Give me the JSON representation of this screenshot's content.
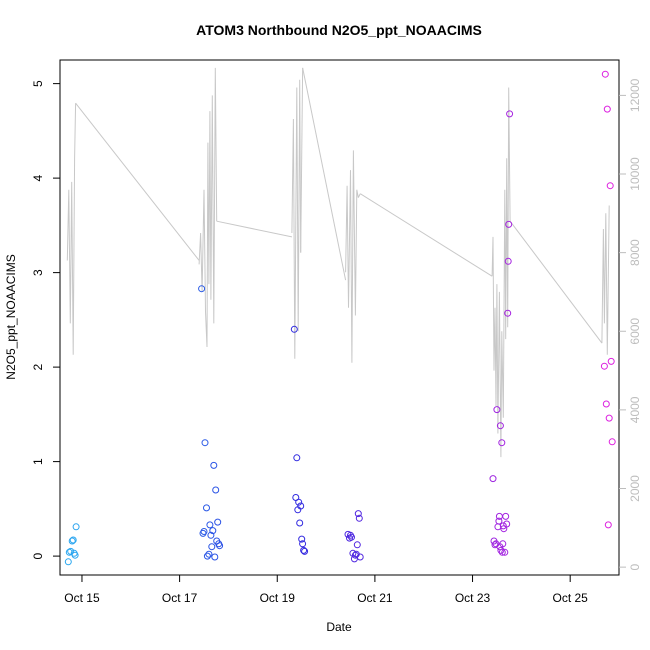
{
  "chart_data": {
    "type": "scatter",
    "title": "ATOM3 Northbound N2O5_ppt_NOAACIMS",
    "xlabel": "Date",
    "ylabel": "N2O5_ppt_NOAACIMS",
    "xlim": [
      14.55,
      26.0
    ],
    "ylim": [
      -0.2,
      5.25
    ],
    "x_ticks": [
      15,
      17,
      19,
      21,
      23,
      25
    ],
    "x_tick_labels": [
      "Oct 15",
      "Oct 17",
      "Oct 19",
      "Oct 21",
      "Oct 23",
      "Oct 25"
    ],
    "y_ticks": [
      0,
      1,
      2,
      3,
      4,
      5
    ],
    "y_tick_labels": [
      "0",
      "1",
      "2",
      "3",
      "4",
      "5"
    ],
    "y2lim": [
      -200,
      12900
    ],
    "y2_ticks": [
      0,
      2000,
      4000,
      6000,
      8000,
      10000,
      12000
    ],
    "y2_tick_labels": [
      "0",
      "2000",
      "4000",
      "6000",
      "8000",
      "10000",
      "12000"
    ],
    "grid": false,
    "colors": {
      "points_start": "#29a8f0",
      "points_mid": "#2a2ae0",
      "points_end": "#e020e0",
      "altitude_line": "#c8c8c8",
      "right_axis": "#bdbdbd"
    },
    "series": [
      {
        "values_note": "x = date (day of October), y = N2O5 ppt",
        "points": [
          [
            14.72,
            -0.06
          ],
          [
            14.74,
            0.04
          ],
          [
            14.77,
            0.05
          ],
          [
            14.8,
            0.16
          ],
          [
            14.82,
            0.17
          ],
          [
            14.84,
            0.03
          ],
          [
            14.86,
            0.01
          ],
          [
            14.88,
            0.31
          ],
          [
            17.45,
            2.83
          ],
          [
            17.48,
            0.24
          ],
          [
            17.5,
            0.26
          ],
          [
            17.52,
            1.2
          ],
          [
            17.55,
            0.51
          ],
          [
            17.57,
            0.0
          ],
          [
            17.6,
            0.02
          ],
          [
            17.62,
            0.33
          ],
          [
            17.64,
            0.22
          ],
          [
            17.66,
            0.1
          ],
          [
            17.68,
            0.27
          ],
          [
            17.7,
            0.96
          ],
          [
            17.72,
            -0.01
          ],
          [
            17.74,
            0.7
          ],
          [
            17.76,
            0.16
          ],
          [
            17.78,
            0.36
          ],
          [
            17.8,
            0.13
          ],
          [
            17.82,
            0.11
          ],
          [
            19.35,
            2.4
          ],
          [
            19.38,
            0.62
          ],
          [
            19.4,
            1.04
          ],
          [
            19.42,
            0.49
          ],
          [
            19.44,
            0.57
          ],
          [
            19.46,
            0.35
          ],
          [
            19.48,
            0.53
          ],
          [
            19.5,
            0.18
          ],
          [
            19.52,
            0.13
          ],
          [
            19.54,
            0.06
          ],
          [
            19.56,
            0.05
          ],
          [
            20.45,
            0.23
          ],
          [
            20.48,
            0.19
          ],
          [
            20.5,
            0.22
          ],
          [
            20.52,
            0.2
          ],
          [
            20.55,
            0.03
          ],
          [
            20.58,
            -0.03
          ],
          [
            20.6,
            0.01
          ],
          [
            20.62,
            0.02
          ],
          [
            20.64,
            0.12
          ],
          [
            20.66,
            0.45
          ],
          [
            20.68,
            0.4
          ],
          [
            20.7,
            -0.01
          ],
          [
            23.42,
            0.82
          ],
          [
            23.44,
            0.16
          ],
          [
            23.46,
            0.12
          ],
          [
            23.48,
            0.13
          ],
          [
            23.5,
            1.55
          ],
          [
            23.52,
            0.31
          ],
          [
            23.54,
            0.37
          ],
          [
            23.55,
            0.42
          ],
          [
            23.56,
            0.1
          ],
          [
            23.57,
            1.38
          ],
          [
            23.58,
            0.06
          ],
          [
            23.6,
            1.2
          ],
          [
            23.61,
            0.04
          ],
          [
            23.62,
            0.13
          ],
          [
            23.63,
            0.32
          ],
          [
            23.64,
            0.29
          ],
          [
            23.66,
            0.04
          ],
          [
            23.68,
            0.42
          ],
          [
            23.7,
            0.34
          ],
          [
            23.72,
            2.57
          ],
          [
            23.73,
            3.12
          ],
          [
            23.74,
            3.51
          ],
          [
            23.76,
            4.68
          ],
          [
            25.7,
            2.01
          ],
          [
            25.72,
            5.1
          ],
          [
            25.74,
            1.61
          ],
          [
            25.76,
            4.73
          ],
          [
            25.78,
            0.33
          ],
          [
            25.8,
            1.46
          ],
          [
            25.82,
            3.92
          ],
          [
            25.84,
            2.06
          ],
          [
            25.86,
            1.21
          ]
        ]
      },
      {
        "name_note": "secondary series drawn as gray line on right axis",
        "points": [
          [
            14.7,
            7800
          ],
          [
            14.73,
            9600
          ],
          [
            14.76,
            6200
          ],
          [
            14.79,
            9800
          ],
          [
            14.82,
            5400
          ],
          [
            14.85,
            10400
          ],
          [
            14.87,
            11800
          ],
          [
            17.4,
            7700
          ],
          [
            17.43,
            8500
          ],
          [
            17.46,
            7000
          ],
          [
            17.5,
            9600
          ],
          [
            17.53,
            6500
          ],
          [
            17.56,
            5600
          ],
          [
            17.58,
            10800
          ],
          [
            17.6,
            7200
          ],
          [
            17.62,
            11600
          ],
          [
            17.64,
            6800
          ],
          [
            17.67,
            12000
          ],
          [
            17.7,
            6200
          ],
          [
            17.73,
            12700
          ],
          [
            17.76,
            8800
          ],
          [
            19.3,
            8500
          ],
          [
            19.33,
            11400
          ],
          [
            19.36,
            5300
          ],
          [
            19.4,
            12200
          ],
          [
            19.43,
            6000
          ],
          [
            19.46,
            12400
          ],
          [
            19.48,
            8000
          ],
          [
            20.4,
            7500
          ],
          [
            20.43,
            9700
          ],
          [
            20.46,
            6600
          ],
          [
            20.5,
            10100
          ],
          [
            20.53,
            5200
          ],
          [
            20.56,
            10600
          ],
          [
            20.6,
            6400
          ],
          [
            20.63,
            9600
          ],
          [
            20.66,
            9400
          ],
          [
            23.4,
            7400
          ],
          [
            23.42,
            8400
          ],
          [
            23.44,
            5000
          ],
          [
            23.46,
            6600
          ],
          [
            23.48,
            4100
          ],
          [
            23.5,
            7200
          ],
          [
            23.52,
            3400
          ],
          [
            23.55,
            7000
          ],
          [
            23.58,
            2800
          ],
          [
            23.6,
            6000
          ],
          [
            23.63,
            3800
          ],
          [
            23.66,
            9600
          ],
          [
            23.68,
            5800
          ],
          [
            23.7,
            10400
          ],
          [
            23.72,
            6100
          ],
          [
            23.74,
            12200
          ],
          [
            23.77,
            8800
          ],
          [
            25.65,
            5700
          ],
          [
            25.68,
            8600
          ],
          [
            25.7,
            6200
          ],
          [
            25.73,
            9000
          ],
          [
            25.76,
            5400
          ],
          [
            25.8,
            9200
          ]
        ],
        "connectors": [
          [
            14.87,
            11800,
            17.4,
            7800
          ],
          [
            17.76,
            8800,
            19.3,
            8400
          ],
          [
            19.48,
            8000,
            19.52,
            12700
          ],
          [
            19.52,
            12700,
            20.4,
            7300
          ],
          [
            20.66,
            9400,
            20.7,
            9500
          ],
          [
            20.7,
            9500,
            23.4,
            7400
          ],
          [
            23.77,
            8800,
            25.65,
            5700
          ]
        ]
      }
    ]
  }
}
